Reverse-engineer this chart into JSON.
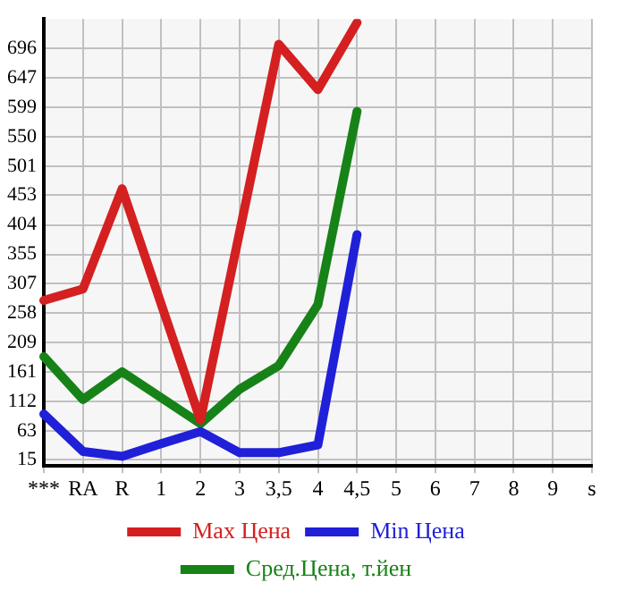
{
  "chart_data": {
    "type": "line",
    "categories": [
      "***",
      "RA",
      "R",
      "1",
      "2",
      "3",
      "3,5",
      "4",
      "4,5",
      "5",
      "6",
      "7",
      "8",
      "9",
      "s"
    ],
    "series": [
      {
        "name": "Max Цена",
        "color": "#d42020",
        "values": [
          279,
          298,
          464,
          null,
          81,
          null,
          703,
          628,
          739,
          null,
          null,
          null,
          null,
          null,
          null
        ]
      },
      {
        "name": "Min Цена",
        "color": "#2020d8",
        "values": [
          91,
          29,
          21,
          42,
          62,
          27,
          27,
          40,
          388,
          null,
          null,
          null,
          null,
          null,
          null
        ]
      },
      {
        "name": "Сред.Цена, т.йен",
        "color": "#178217",
        "values": [
          186,
          115,
          161,
          118,
          75,
          132,
          171,
          272,
          592,
          null,
          null,
          null,
          null,
          null,
          null
        ]
      }
    ],
    "ylim": [
      5,
      745
    ],
    "yticks": [
      15,
      63,
      112,
      161,
      209,
      258,
      307,
      355,
      404,
      453,
      501,
      550,
      599,
      647,
      696
    ],
    "grid": true,
    "legend": "bottom",
    "marker": "none",
    "line_style": "solid"
  }
}
